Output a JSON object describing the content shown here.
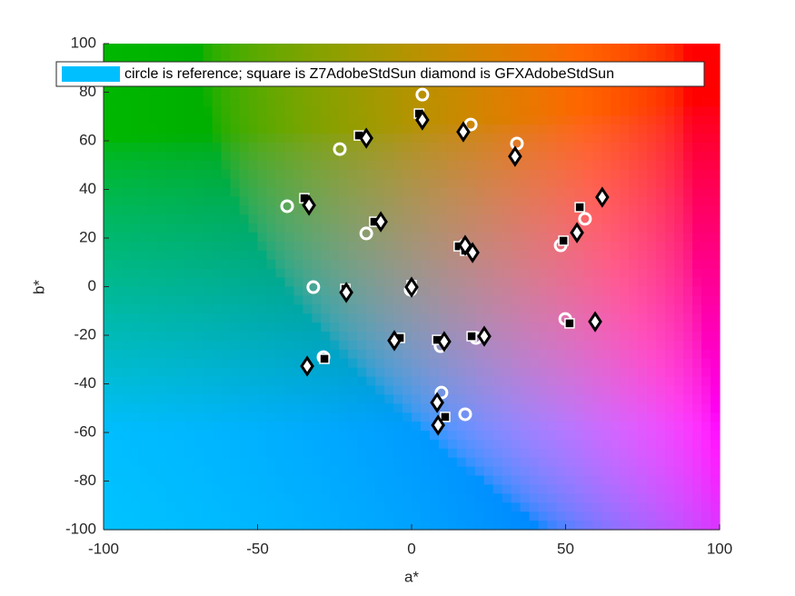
{
  "chart_data": {
    "type": "scatter",
    "xlabel": "a*",
    "ylabel": "b*",
    "xlim": [
      -100,
      100
    ],
    "ylim": [
      -100,
      100
    ],
    "xticks": [
      -100,
      -50,
      0,
      50,
      100
    ],
    "yticks": [
      -100,
      -80,
      -60,
      -40,
      -20,
      0,
      20,
      40,
      60,
      80,
      100
    ],
    "legend": {
      "label": "circle is reference; square is Z7AdobeStdSun diamond is GFXAdobeStdSun",
      "color": "#00bfff",
      "loc": "top-left"
    },
    "series": [
      {
        "marker": "circle",
        "color": "#ffffff",
        "x": [
          3.5,
          19.2,
          -23.3,
          34.2,
          -40.4,
          -14.7,
          56.3,
          48.4,
          -31.9,
          -0.3,
          17.1,
          49.9,
          -28.6,
          9.4,
          20.9,
          9.7,
          17.4
        ],
        "values": [
          79,
          66.7,
          56.6,
          58.9,
          33.1,
          21.9,
          27.9,
          17.0,
          -0.2,
          -1.3,
          17.0,
          -13.3,
          -29.0,
          -24.5,
          -21.1,
          -43.6,
          -52.5
        ]
      },
      {
        "marker": "square",
        "color": "#000000",
        "x": [
          2.4,
          -17.1,
          -34.8,
          54.6,
          49.3,
          -12.1,
          15.3,
          17.4,
          -21.5,
          0,
          51.3,
          -3.8,
          8.3,
          19.5,
          -28.3,
          10.9
        ],
        "values": [
          71.2,
          62.2,
          36.4,
          32.7,
          18.9,
          26.7,
          16.6,
          14.8,
          -0.9,
          0.6,
          -15.1,
          -21.1,
          -21.9,
          -20.4,
          -29.7,
          -53.6
        ]
      },
      {
        "marker": "diamond",
        "color": "#ffffff",
        "x": [
          3.5,
          -14.7,
          16.8,
          33.6,
          -33.3,
          -10.0,
          61.9,
          53.7,
          17.4,
          19.8,
          -21.2,
          0,
          -5.6,
          10.6,
          23.6,
          59.6,
          -33.9,
          8.3,
          8.6
        ],
        "values": [
          68.6,
          61.1,
          63.7,
          53.6,
          33.5,
          26.7,
          36.8,
          22.2,
          17.0,
          14.0,
          -2.4,
          -0.2,
          -22.2,
          -22.6,
          -20.4,
          -14.4,
          -32.7,
          -47.7,
          -57.0
        ]
      }
    ]
  }
}
